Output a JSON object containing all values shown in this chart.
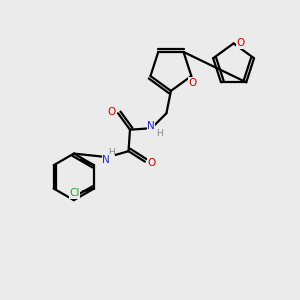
{
  "bg_color": "#ebebeb",
  "atom_colors": {
    "C": "#000000",
    "N": "#2222cc",
    "O": "#cc0000",
    "Cl": "#22aa22",
    "H": "#888888"
  },
  "bond_color": "#000000",
  "bond_width": 1.6,
  "figsize": [
    3.0,
    3.0
  ],
  "dpi": 100
}
